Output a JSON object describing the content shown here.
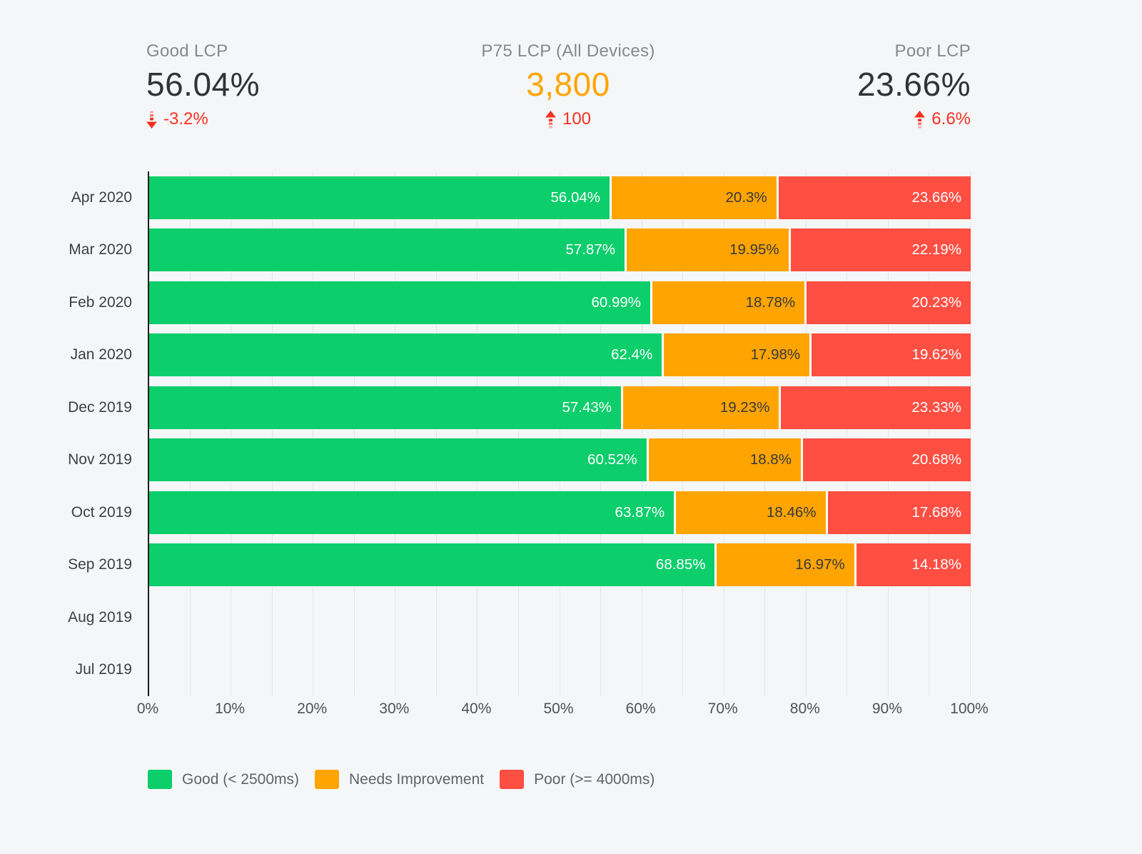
{
  "stats": [
    {
      "label": "Good LCP",
      "value": "56.04%",
      "delta": "-3.2%",
      "direction": "down",
      "value_color": "#2f3337"
    },
    {
      "label": "P75 LCP (All Devices)",
      "value": "3,800",
      "delta": "100",
      "direction": "up",
      "value_color": "#ffa400"
    },
    {
      "label": "Poor LCP",
      "value": "23.66%",
      "delta": "6.6%",
      "direction": "up",
      "value_color": "#2f3337"
    }
  ],
  "delta_color": "#f53122",
  "chart_data": {
    "type": "bar",
    "orientation": "horizontal",
    "stacked": true,
    "categories": [
      "Apr 2020",
      "Mar 2020",
      "Feb 2020",
      "Jan 2020",
      "Dec 2019",
      "Nov 2019",
      "Oct 2019",
      "Sep 2019",
      "Aug 2019",
      "Jul 2019"
    ],
    "series": [
      {
        "name": "Good (< 2500ms)",
        "color": "#0cce6b",
        "label_color": "#ffffff",
        "values": [
          56.04,
          57.87,
          60.99,
          62.4,
          57.43,
          60.52,
          63.87,
          68.85,
          null,
          null
        ]
      },
      {
        "name": "Needs Improvement",
        "color": "#ffa400",
        "label_color": "#35393d",
        "values": [
          20.3,
          19.95,
          18.78,
          17.98,
          19.23,
          18.8,
          18.46,
          16.97,
          null,
          null
        ]
      },
      {
        "name": "Poor (>= 4000ms)",
        "color": "#ff4e42",
        "label_color": "#ffffff",
        "values": [
          23.66,
          22.19,
          20.23,
          19.62,
          23.33,
          20.68,
          17.68,
          14.18,
          null,
          null
        ]
      }
    ],
    "x_ticks": [
      "0%",
      "10%",
      "20%",
      "30%",
      "40%",
      "50%",
      "60%",
      "70%",
      "80%",
      "90%",
      "100%"
    ],
    "xlim": [
      0,
      100
    ],
    "value_suffix": "%",
    "grid": {
      "minor_step_pct": 5,
      "color": "#e4e6ea"
    },
    "legend_position": "bottom"
  }
}
